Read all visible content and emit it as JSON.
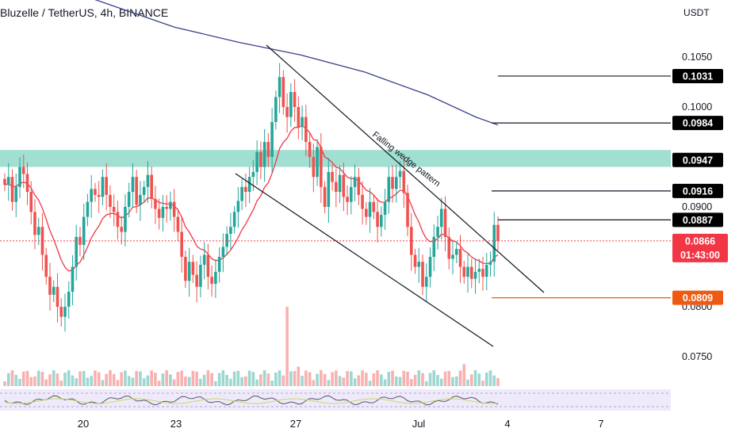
{
  "header": {
    "title": "Bluzelle / TetherUS, 4h, BINANCE",
    "currency": "USDT"
  },
  "chart_data": {
    "type": "candlestick",
    "y_axis": {
      "ticks": [
        "0.1050",
        "0.1000",
        "0.0900",
        "0.0800",
        "0.0750"
      ],
      "ylim": [
        0.0735,
        0.1085
      ]
    },
    "x_axis": {
      "ticks": [
        "20",
        "23",
        "27",
        "Jul",
        "4",
        "7"
      ]
    },
    "price_tags": [
      {
        "label": "0.1031",
        "value": 0.1031,
        "color": "#000000"
      },
      {
        "label": "0.0984",
        "value": 0.0984,
        "color": "#000000"
      },
      {
        "label": "0.0947",
        "value": 0.0947,
        "color": "#000000"
      },
      {
        "label": "0.0916",
        "value": 0.0916,
        "color": "#000000"
      },
      {
        "label": "0.0887",
        "value": 0.0887,
        "color": "#000000"
      },
      {
        "label": "0.0866",
        "value": 0.0866,
        "color": "#f23645"
      },
      {
        "label": "0.0809",
        "value": 0.0809,
        "color": "#ef5a12"
      }
    ],
    "current_price": {
      "value": 0.0866,
      "label": "0.0866",
      "countdown": "01:43:00",
      "color": "#f23645"
    },
    "resistance_zone": {
      "from": 0.094,
      "to": 0.0957,
      "color": "#8fd9c9"
    },
    "annotation": "Falling wedge pattern",
    "wedge": {
      "upper": [
        [
          0.1047,
          0.1054
        ],
        [
          0.1148,
          0.0814
        ]
      ],
      "lower": [
        [
          0.0974,
          0.0942
        ],
        [
          0.1147,
          0.0768
        ]
      ]
    },
    "candles_close": [
      0.0922,
      0.093,
      0.0905,
      0.092,
      0.094,
      0.0933,
      0.0915,
      0.0895,
      0.0872,
      0.088,
      0.0852,
      0.083,
      0.0812,
      0.082,
      0.08,
      0.079,
      0.08,
      0.0815,
      0.084,
      0.087,
      0.0862,
      0.089,
      0.0905,
      0.0918,
      0.0912,
      0.091,
      0.093,
      0.0912,
      0.09,
      0.0895,
      0.088,
      0.0875,
      0.09,
      0.0915,
      0.093,
      0.0902,
      0.0912,
      0.092,
      0.0932,
      0.0908,
      0.0898,
      0.0889,
      0.09,
      0.0898,
      0.0905,
      0.089,
      0.0875,
      0.085,
      0.0826,
      0.0845,
      0.0832,
      0.082,
      0.0842,
      0.0852,
      0.083,
      0.0823,
      0.0835,
      0.085,
      0.086,
      0.0873,
      0.088,
      0.0895,
      0.0906,
      0.092,
      0.0915,
      0.093,
      0.0935,
      0.0955,
      0.094,
      0.0965,
      0.095,
      0.0985,
      0.101,
      0.103,
      0.1,
      0.099,
      0.1015,
      0.1,
      0.098,
      0.099,
      0.0965,
      0.095,
      0.093,
      0.096,
      0.092,
      0.09,
      0.0935,
      0.0925,
      0.0915,
      0.0932,
      0.091,
      0.0905,
      0.092,
      0.093,
      0.0912,
      0.0898,
      0.089,
      0.0905,
      0.0895,
      0.088,
      0.0892,
      0.0905,
      0.093,
      0.0918,
      0.093,
      0.0936,
      0.0914,
      0.088,
      0.0852,
      0.084,
      0.0845,
      0.082,
      0.083,
      0.085,
      0.087,
      0.088,
      0.0898,
      0.087,
      0.0848,
      0.0852,
      0.0858,
      0.084,
      0.083,
      0.084,
      0.0828,
      0.0835,
      0.0838,
      0.083,
      0.0842,
      0.0845,
      0.0882,
      0.0866
    ],
    "ma_fast_color": "#f23645",
    "ma_slow_color": "#3a3f8c",
    "up_color": "#26a69a",
    "down_color": "#ef5350"
  }
}
